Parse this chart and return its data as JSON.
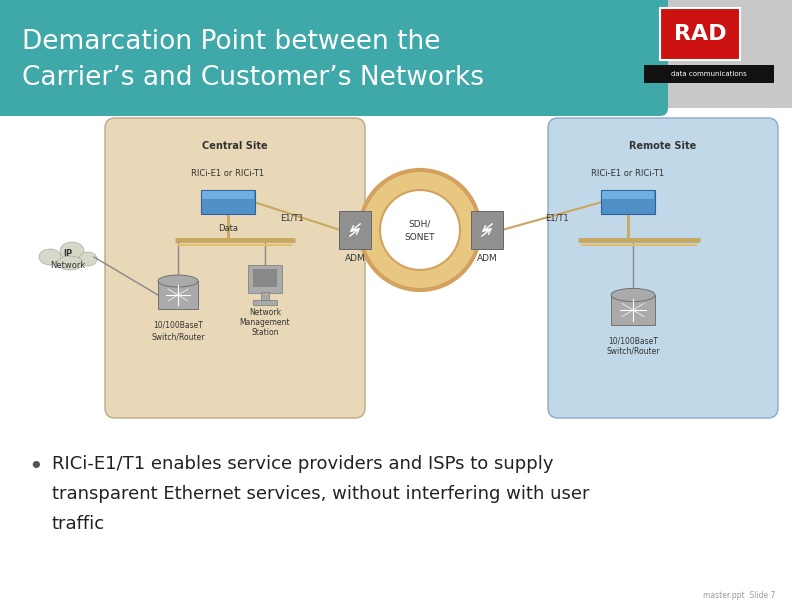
{
  "title_line1": "Demarcation Point between the",
  "title_line2": "Carrier’s and Customer’s Networks",
  "title_bg_color": "#3fa8a8",
  "title_text_color": "#ffffff",
  "slide_bg_color": "#ffffff",
  "logo_bg_color": "#c8c8c8",
  "bullet_text": "RICi-E1/T1 enables service providers and ISPs to supply\ntransparent Ethernet services, without interfering with user\ntraffic",
  "bullet_color": "#555555",
  "footer_text": "master.ppt  Slide 7",
  "central_site_bg": "#e8d8b8",
  "remote_site_bg": "#c0d8e8",
  "sonet_ring_outer": "#d4a060",
  "sonet_ring_inner": "#f8edd0",
  "device_blue": "#5090c8",
  "device_gray": "#909090",
  "shelf_color": "#c8a860",
  "line_color": "#888888",
  "text_dark": "#333333"
}
